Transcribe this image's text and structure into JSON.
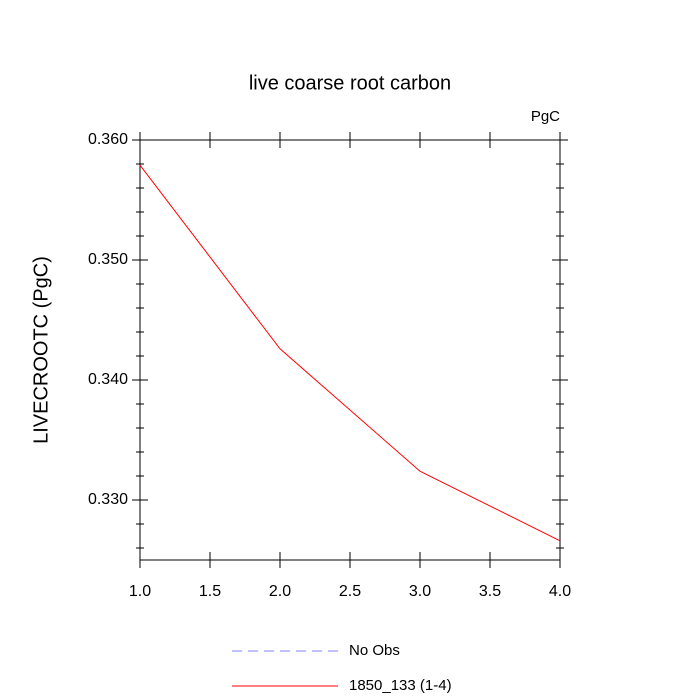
{
  "chart_data": {
    "type": "line",
    "title": "live coarse root carbon",
    "units": "PgC",
    "y_label": "LIVECROOTC  (PgC)",
    "x": [
      1,
      2,
      3,
      4
    ],
    "series": [
      {
        "name": "No Obs",
        "color": "#8080ff",
        "dash": "dashed",
        "values": [
          null,
          null,
          null,
          null
        ]
      },
      {
        "name": "1850_133 (1-4)",
        "color": "#ff0000",
        "values": [
          0.3579,
          0.3426,
          0.3324,
          0.3266
        ]
      }
    ],
    "xlim": [
      1,
      4
    ],
    "xticks": [
      {
        "value": 1,
        "label": "1.0"
      },
      {
        "value": 1.5,
        "label": "1.5"
      },
      {
        "value": 2,
        "label": "2.0"
      },
      {
        "value": 2.5,
        "label": "2.5"
      },
      {
        "value": 3,
        "label": "3.0"
      },
      {
        "value": 3.5,
        "label": "3.5"
      },
      {
        "value": 4,
        "label": "4.0"
      }
    ],
    "ylim": [
      0.325,
      0.36
    ],
    "yticks": [
      {
        "value": 0.33,
        "label": "0.330"
      },
      {
        "value": 0.34,
        "label": "0.340"
      },
      {
        "value": 0.35,
        "label": "0.350"
      },
      {
        "value": 0.36,
        "label": "0.360"
      }
    ]
  }
}
